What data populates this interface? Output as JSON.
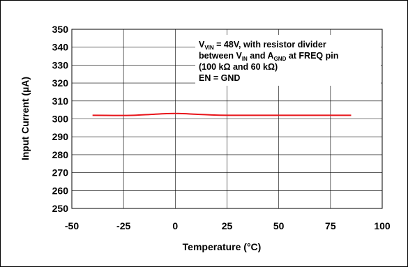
{
  "chart_data": {
    "type": "line",
    "xlabel": "Temperature (°C)",
    "ylabel": "Input Current (µA)",
    "xlim": [
      -50,
      100
    ],
    "ylim": [
      250,
      350
    ],
    "xticks": [
      -50,
      -25,
      0,
      25,
      50,
      75,
      100
    ],
    "yticks": [
      250,
      260,
      270,
      280,
      290,
      300,
      310,
      320,
      330,
      340,
      350
    ],
    "grid": true,
    "series": [
      {
        "color": "#e8141a",
        "x": [
          -40,
          -30,
          -20,
          -10,
          0,
          10,
          20,
          30,
          40,
          50,
          60,
          70,
          85
        ],
        "y": [
          302,
          301.9,
          302,
          302.6,
          303,
          302.6,
          302.1,
          302,
          302,
          302,
          302,
          302,
          302
        ]
      }
    ],
    "annotation": {
      "line1": {
        "a": "V",
        "a_sub": "VIN",
        "b": " = 48V, with resistor divider"
      },
      "line2": {
        "a": "between V",
        "a_sub": "IN",
        "b": " and A",
        "b_sub": "GND",
        "c": " at FREQ pin"
      },
      "line3": "(100 kΩ and 60 kΩ)",
      "line4": "EN = GND"
    }
  }
}
